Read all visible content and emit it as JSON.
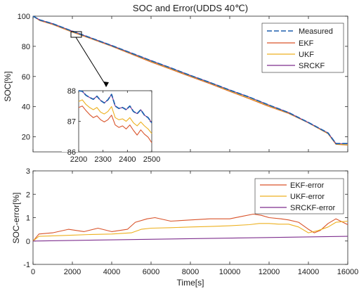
{
  "chart_data": [
    {
      "type": "line",
      "title": "SOC and Error(UDDS 40℃)",
      "xlabel": "",
      "ylabel": "SOC[%]",
      "xlim": [
        0,
        16000
      ],
      "ylim": [
        10,
        100
      ],
      "xticks": [
        0,
        2000,
        4000,
        6000,
        8000,
        10000,
        12000,
        14000,
        16000
      ],
      "yticks": [
        20,
        40,
        60,
        80,
        100
      ],
      "grid": false,
      "legend_position": "top-right",
      "series": [
        {
          "name": "Measured",
          "color": "#1f5fad",
          "dashed": true,
          "x": [
            0,
            350,
            1000,
            2000,
            3000,
            4000,
            5000,
            6000,
            7000,
            8000,
            9000,
            10000,
            11000,
            12000,
            13000,
            14000,
            15000,
            15400,
            16000
          ],
          "y": [
            100,
            97.5,
            95,
            90,
            85.3,
            80.5,
            75.5,
            70.5,
            65.7,
            60.7,
            56,
            51,
            46.3,
            41,
            36,
            29.5,
            22.5,
            15.5,
            15.5
          ]
        },
        {
          "name": "EKF",
          "color": "#d9532a",
          "dashed": false,
          "x": [
            0,
            350,
            1000,
            2000,
            3000,
            4000,
            5000,
            6000,
            7000,
            8000,
            9000,
            10000,
            11000,
            12000,
            13000,
            14000,
            15000,
            15400,
            16000
          ],
          "y": [
            100,
            97,
            94.5,
            89.4,
            84.8,
            80,
            74.8,
            69.6,
            64.8,
            59.9,
            55.2,
            50.1,
            45.2,
            40.1,
            35.4,
            29.2,
            22,
            15,
            14.5
          ]
        },
        {
          "name": "UKF",
          "color": "#edb120",
          "dashed": false,
          "x": [
            0,
            350,
            1000,
            2000,
            3000,
            4000,
            5000,
            6000,
            7000,
            8000,
            9000,
            10000,
            11000,
            12000,
            13000,
            14000,
            15000,
            15400,
            16000
          ],
          "y": [
            100,
            97.2,
            94.7,
            89.6,
            85,
            80.2,
            75.1,
            69.9,
            65.1,
            60.2,
            55.5,
            50.4,
            45.5,
            40.4,
            35.6,
            29.3,
            22.1,
            15.1,
            14.7
          ]
        },
        {
          "name": "SRCKF",
          "color": "#7e2f8e",
          "dashed": false,
          "x": [
            0,
            350,
            1000,
            2000,
            3000,
            4000,
            5000,
            6000,
            7000,
            8000,
            9000,
            10000,
            11000,
            12000,
            13000,
            14000,
            15000,
            15400,
            16000
          ],
          "y": [
            100,
            97.5,
            95,
            90,
            85.3,
            80.5,
            75.5,
            70.5,
            65.7,
            60.7,
            56,
            51,
            46.3,
            41,
            36,
            29.5,
            22.5,
            15.5,
            15.4
          ]
        }
      ]
    },
    {
      "type": "line",
      "title": "",
      "xlabel": "",
      "ylabel": "",
      "xlim": [
        2200,
        2500
      ],
      "ylim": [
        86,
        88
      ],
      "xticks": [
        2200,
        2300,
        2400,
        2500
      ],
      "yticks": [
        86,
        87,
        88
      ],
      "grid": false,
      "series": [
        {
          "name": "Measured",
          "color": "#1f5fad",
          "dashed": true,
          "x": [
            2200,
            2215,
            2230,
            2245,
            2260,
            2275,
            2290,
            2305,
            2320,
            2335,
            2350,
            2365,
            2380,
            2395,
            2410,
            2425,
            2440,
            2455,
            2470,
            2485,
            2500
          ],
          "y": [
            88,
            87.98,
            87.85,
            87.78,
            87.72,
            87.82,
            87.68,
            87.6,
            87.7,
            87.88,
            87.5,
            87.42,
            87.45,
            87.38,
            87.5,
            87.32,
            87.25,
            87.38,
            87.2,
            87.12,
            86.95
          ]
        },
        {
          "name": "EKF",
          "color": "#d9532a",
          "dashed": false,
          "x": [
            2200,
            2215,
            2230,
            2245,
            2260,
            2275,
            2290,
            2305,
            2320,
            2335,
            2350,
            2365,
            2380,
            2395,
            2410,
            2425,
            2440,
            2455,
            2470,
            2485,
            2500
          ],
          "y": [
            87.45,
            87.5,
            87.35,
            87.22,
            87.12,
            87.18,
            87.05,
            86.98,
            87.05,
            87.2,
            86.88,
            86.8,
            86.85,
            86.75,
            86.88,
            86.7,
            86.55,
            86.72,
            86.58,
            86.48,
            86.3
          ]
        },
        {
          "name": "UKF",
          "color": "#edb120",
          "dashed": false,
          "x": [
            2200,
            2215,
            2230,
            2245,
            2260,
            2275,
            2290,
            2305,
            2320,
            2335,
            2350,
            2365,
            2380,
            2395,
            2410,
            2425,
            2440,
            2455,
            2470,
            2485,
            2500
          ],
          "y": [
            87.65,
            87.7,
            87.55,
            87.45,
            87.38,
            87.45,
            87.3,
            87.24,
            87.32,
            87.48,
            87.12,
            87.05,
            87.08,
            87.0,
            87.12,
            86.95,
            86.85,
            86.98,
            86.85,
            86.75,
            86.6
          ]
        },
        {
          "name": "SRCKF",
          "color": "#7e2f8e",
          "dashed": false,
          "x": [
            2200,
            2215,
            2230,
            2245,
            2260,
            2275,
            2290,
            2305,
            2320,
            2335,
            2350,
            2365,
            2380,
            2395,
            2410,
            2425,
            2440,
            2455,
            2470,
            2485,
            2500
          ],
          "y": [
            88,
            87.98,
            87.85,
            87.78,
            87.72,
            87.82,
            87.68,
            87.6,
            87.7,
            87.88,
            87.5,
            87.42,
            87.45,
            87.38,
            87.5,
            87.32,
            87.25,
            87.38,
            87.2,
            87.12,
            86.95
          ]
        }
      ]
    },
    {
      "type": "line",
      "title": "",
      "xlabel": "Time[s]",
      "ylabel": "SOC-error[%]",
      "xlim": [
        0,
        16000
      ],
      "ylim": [
        -1,
        3
      ],
      "xticks": [
        0,
        2000,
        4000,
        6000,
        8000,
        10000,
        12000,
        14000,
        16000
      ],
      "yticks": [
        -1,
        0,
        1,
        2,
        3
      ],
      "grid": false,
      "legend_position": "top-right",
      "series": [
        {
          "name": "EKF-error",
          "color": "#d9532a",
          "dashed": false,
          "x": [
            0,
            300,
            1000,
            1800,
            2600,
            3300,
            4000,
            4800,
            5200,
            5800,
            6200,
            7000,
            8000,
            9000,
            10000,
            10600,
            11200,
            11600,
            12000,
            12600,
            13000,
            13500,
            14000,
            14300,
            14600,
            15000,
            15400,
            16000
          ],
          "y": [
            0,
            0.3,
            0.35,
            0.5,
            0.4,
            0.55,
            0.4,
            0.5,
            0.8,
            0.95,
            1.0,
            0.85,
            0.9,
            0.95,
            0.95,
            1.05,
            1.15,
            1.1,
            1.0,
            0.95,
            0.9,
            0.8,
            0.5,
            0.35,
            0.45,
            0.75,
            0.95,
            0.7
          ]
        },
        {
          "name": "UKF-error",
          "color": "#edb120",
          "dashed": false,
          "x": [
            0,
            300,
            1000,
            2000,
            3000,
            4000,
            5000,
            5500,
            6000,
            7000,
            8000,
            9000,
            10000,
            11000,
            11500,
            12000,
            12500,
            13000,
            13500,
            14000,
            14500,
            15000,
            15400,
            16000
          ],
          "y": [
            0,
            0.2,
            0.22,
            0.25,
            0.28,
            0.3,
            0.35,
            0.5,
            0.55,
            0.57,
            0.6,
            0.62,
            0.65,
            0.7,
            0.75,
            0.75,
            0.72,
            0.72,
            0.6,
            0.35,
            0.45,
            0.6,
            0.8,
            0.85
          ]
        },
        {
          "name": "SRCKF-error",
          "color": "#7e2f8e",
          "dashed": false,
          "x": [
            0,
            16000
          ],
          "y": [
            0,
            0.2
          ]
        }
      ]
    }
  ]
}
